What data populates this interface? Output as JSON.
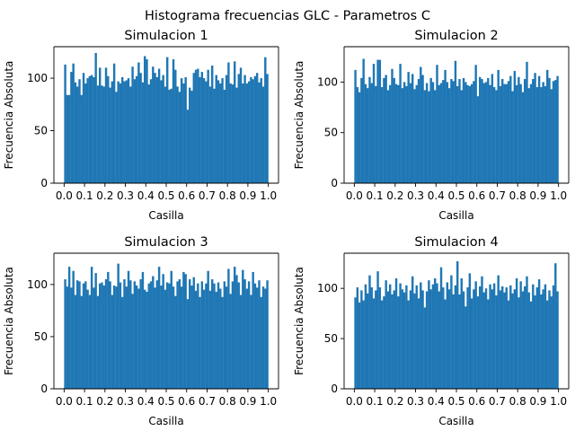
{
  "figure": {
    "suptitle": "Histograma frecuencias GLC - Parametros C"
  },
  "style": {
    "bar_color": "#1f77b4",
    "axis_color": "#000000"
  },
  "chart_data": [
    {
      "type": "bar",
      "title": "Simulacion 1",
      "xlabel": "Casilla",
      "ylabel": "Frecuencia Absoluta",
      "xlim": [
        -0.05,
        1.05
      ],
      "ylim": [
        0,
        130
      ],
      "xticks": [
        "0.0",
        "0.1",
        "0.2",
        "0.3",
        "0.4",
        "0.5",
        "0.6",
        "0.7",
        "0.8",
        "0.9",
        "1.0"
      ],
      "yticks": [
        "0",
        "50",
        "100"
      ],
      "bin_width": 0.01,
      "values": [
        113,
        84,
        84,
        106,
        114,
        96,
        92,
        99,
        84,
        105,
        95,
        100,
        102,
        103,
        101,
        124,
        93,
        110,
        93,
        92,
        110,
        102,
        91,
        97,
        114,
        87,
        97,
        95,
        101,
        97,
        98,
        100,
        92,
        111,
        99,
        102,
        115,
        105,
        96,
        121,
        118,
        94,
        99,
        111,
        105,
        101,
        109,
        98,
        103,
        92,
        120,
        89,
        90,
        118,
        108,
        92,
        87,
        100,
        95,
        101,
        70,
        91,
        88,
        105,
        108,
        109,
        101,
        106,
        100,
        97,
        108,
        92,
        112,
        90,
        103,
        98,
        95,
        100,
        89,
        103,
        115,
        95,
        94,
        116,
        91,
        104,
        110,
        95,
        103,
        95,
        97,
        101,
        99,
        102,
        105,
        96,
        100,
        92,
        120,
        104
      ]
    },
    {
      "type": "bar",
      "title": "Simulacion 2",
      "xlabel": "Casilla",
      "ylabel": "Frecuencia Absoluta",
      "xlim": [
        -0.05,
        1.05
      ],
      "ylim": [
        0,
        135
      ],
      "xticks": [
        "0.0",
        "0.1",
        "0.2",
        "0.3",
        "0.4",
        "0.5",
        "0.6",
        "0.7",
        "0.8",
        "0.9",
        "1.0"
      ],
      "yticks": [
        "0",
        "50",
        "100"
      ],
      "bin_width": 0.01,
      "values": [
        112,
        95,
        90,
        104,
        123,
        98,
        94,
        105,
        99,
        118,
        96,
        122,
        122,
        95,
        104,
        107,
        92,
        97,
        113,
        104,
        98,
        97,
        118,
        94,
        100,
        96,
        110,
        99,
        108,
        93,
        97,
        103,
        115,
        107,
        92,
        99,
        91,
        104,
        100,
        92,
        117,
        97,
        99,
        102,
        112,
        100,
        94,
        103,
        101,
        121,
        96,
        103,
        92,
        104,
        100,
        97,
        96,
        98,
        101,
        117,
        86,
        105,
        103,
        99,
        100,
        104,
        97,
        108,
        95,
        92,
        112,
        96,
        103,
        98,
        98,
        101,
        106,
        91,
        111,
        97,
        105,
        98,
        90,
        103,
        120,
        94,
        98,
        103,
        109,
        95,
        106,
        95,
        100,
        96,
        112,
        104,
        93,
        101,
        102,
        106
      ]
    },
    {
      "type": "bar",
      "title": "Simulacion 3",
      "xlabel": "Casilla",
      "ylabel": "Frecuencia Absoluta",
      "xlim": [
        -0.05,
        1.05
      ],
      "ylim": [
        0,
        130
      ],
      "xticks": [
        "0.0",
        "0.1",
        "0.2",
        "0.3",
        "0.4",
        "0.5",
        "0.6",
        "0.7",
        "0.8",
        "0.9",
        "1.0"
      ],
      "yticks": [
        "0",
        "50",
        "100"
      ],
      "bin_width": 0.01,
      "values": [
        105,
        98,
        117,
        97,
        113,
        90,
        104,
        103,
        89,
        101,
        103,
        95,
        90,
        117,
        97,
        111,
        89,
        101,
        102,
        99,
        105,
        112,
        103,
        90,
        99,
        98,
        120,
        102,
        88,
        105,
        98,
        113,
        104,
        91,
        103,
        99,
        96,
        105,
        112,
        95,
        93,
        101,
        103,
        108,
        97,
        104,
        117,
        99,
        110,
        95,
        102,
        101,
        113,
        98,
        89,
        103,
        105,
        98,
        112,
        110,
        86,
        105,
        99,
        107,
        94,
        101,
        88,
        103,
        95,
        101,
        113,
        94,
        105,
        101,
        93,
        102,
        96,
        88,
        103,
        98,
        115,
        91,
        103,
        117,
        109,
        102,
        90,
        114,
        105,
        96,
        103,
        90,
        112,
        101,
        97,
        104,
        88,
        98,
        96,
        104
      ]
    },
    {
      "type": "bar",
      "title": "Simulacion 4",
      "xlabel": "Casilla",
      "ylabel": "Frecuencia Absoluta",
      "xlim": [
        -0.05,
        1.05
      ],
      "ylim": [
        0,
        135
      ],
      "xticks": [
        "0.0",
        "0.1",
        "0.2",
        "0.3",
        "0.4",
        "0.5",
        "0.6",
        "0.7",
        "0.8",
        "0.9",
        "1.0"
      ],
      "yticks": [
        "0",
        "50",
        "100"
      ],
      "bin_width": 0.01,
      "values": [
        91,
        101,
        86,
        98,
        88,
        104,
        95,
        113,
        101,
        90,
        98,
        117,
        101,
        88,
        92,
        108,
        97,
        104,
        94,
        98,
        110,
        92,
        105,
        99,
        96,
        103,
        88,
        98,
        112,
        95,
        103,
        90,
        106,
        98,
        81,
        97,
        108,
        99,
        104,
        110,
        105,
        97,
        121,
        101,
        89,
        106,
        99,
        113,
        94,
        103,
        127,
        94,
        110,
        97,
        82,
        101,
        115,
        90,
        99,
        107,
        92,
        102,
        112,
        96,
        100,
        89,
        104,
        99,
        105,
        93,
        113,
        98,
        102,
        96,
        101,
        88,
        103,
        95,
        99,
        110,
        91,
        107,
        97,
        102,
        112,
        96,
        87,
        104,
        93,
        101,
        109,
        94,
        99,
        104,
        88,
        98,
        92,
        103,
        125,
        97
      ]
    }
  ]
}
